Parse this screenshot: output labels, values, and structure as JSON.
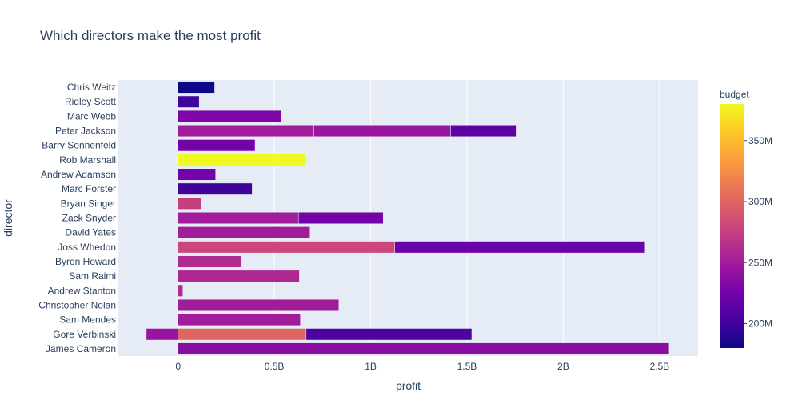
{
  "chart_data": {
    "type": "bar",
    "orientation": "horizontal",
    "barmode": "stack",
    "title": "Which directors make the most profit",
    "xlabel": "profit",
    "ylabel": "director",
    "xlim": [
      -0.31,
      2.7
    ],
    "x_ticks": [
      {
        "value": 0,
        "label": "0"
      },
      {
        "value": 0.5,
        "label": "0.5B"
      },
      {
        "value": 1,
        "label": "1B"
      },
      {
        "value": 1.5,
        "label": "1.5B"
      },
      {
        "value": 2,
        "label": "2B"
      },
      {
        "value": 2.5,
        "label": "2.5B"
      }
    ],
    "grid": true,
    "categories": [
      "Chris Weitz",
      "Ridley Scott",
      "Marc Webb",
      "Peter Jackson",
      "Barry Sonnenfeld",
      "Rob Marshall",
      "Andrew Adamson",
      "Marc Forster",
      "Bryan Singer",
      "Zack Snyder",
      "David Yates",
      "Joss Whedon",
      "Byron Howard",
      "Sam Raimi",
      "Andrew Stanton",
      "Christopher Nolan",
      "Sam Mendes",
      "Gore Verbinski",
      "James Cameron"
    ],
    "bars": [
      {
        "director": "Chris Weitz",
        "segments": [
          {
            "profit": 0.19,
            "budget": 180
          }
        ]
      },
      {
        "director": "Ridley Scott",
        "segments": [
          {
            "profit": 0.11,
            "budget": 200
          }
        ]
      },
      {
        "director": "Marc Webb",
        "segments": [
          {
            "profit": 0.535,
            "budget": 230
          }
        ]
      },
      {
        "director": "Peter Jackson",
        "segments": [
          {
            "profit": 0.705,
            "budget": 250
          },
          {
            "profit": 0.71,
            "budget": 245
          },
          {
            "profit": 0.34,
            "budget": 215
          }
        ]
      },
      {
        "director": "Barry Sonnenfeld",
        "segments": [
          {
            "profit": 0.4,
            "budget": 225
          }
        ]
      },
      {
        "director": "Rob Marshall",
        "segments": [
          {
            "profit": 0.665,
            "budget": 380
          }
        ]
      },
      {
        "director": "Andrew Adamson",
        "segments": [
          {
            "profit": 0.195,
            "budget": 225
          }
        ]
      },
      {
        "director": "Marc Forster",
        "segments": [
          {
            "profit": 0.385,
            "budget": 200
          }
        ]
      },
      {
        "director": "Bryan Singer",
        "segments": [
          {
            "profit": 0.12,
            "budget": 275
          }
        ]
      },
      {
        "director": "Zack Snyder",
        "segments": [
          {
            "profit": 0.625,
            "budget": 250
          },
          {
            "profit": 0.44,
            "budget": 225
          }
        ]
      },
      {
        "director": "David Yates",
        "segments": [
          {
            "profit": 0.685,
            "budget": 250
          }
        ]
      },
      {
        "director": "Joss Whedon",
        "segments": [
          {
            "profit": 1.125,
            "budget": 280
          },
          {
            "profit": 1.3,
            "budget": 220
          }
        ]
      },
      {
        "director": "Byron Howard",
        "segments": [
          {
            "profit": 0.33,
            "budget": 260
          }
        ]
      },
      {
        "director": "Sam Raimi",
        "segments": [
          {
            "profit": 0.63,
            "budget": 258
          }
        ]
      },
      {
        "director": "Andrew Stanton",
        "segments": [
          {
            "profit": 0.025,
            "budget": 260
          }
        ]
      },
      {
        "director": "Christopher Nolan",
        "segments": [
          {
            "profit": 0.835,
            "budget": 250
          }
        ]
      },
      {
        "director": "Sam Mendes",
        "segments": [
          {
            "profit": 0.635,
            "budget": 250
          }
        ]
      },
      {
        "director": "Gore Verbinski",
        "segments": [
          {
            "profit": -0.165,
            "budget": 245
          },
          {
            "profit": 0.665,
            "budget": 300
          },
          {
            "profit": 0.86,
            "budget": 205
          }
        ]
      },
      {
        "director": "James Cameron",
        "segments": [
          {
            "profit": 2.55,
            "budget": 237
          }
        ]
      }
    ],
    "colorbar": {
      "title": "budget",
      "range": [
        180,
        380
      ],
      "ticks": [
        {
          "value": 200,
          "label": "200M"
        },
        {
          "value": 250,
          "label": "250M"
        },
        {
          "value": 300,
          "label": "300M"
        },
        {
          "value": 350,
          "label": "350M"
        }
      ],
      "colorscale": [
        "#0d0887",
        "#46039f",
        "#7201a8",
        "#9c179e",
        "#bd3786",
        "#d8576b",
        "#ed7953",
        "#fb9f3a",
        "#fdca26",
        "#f0f921"
      ]
    },
    "plot_bg": "#e5ecf6"
  }
}
